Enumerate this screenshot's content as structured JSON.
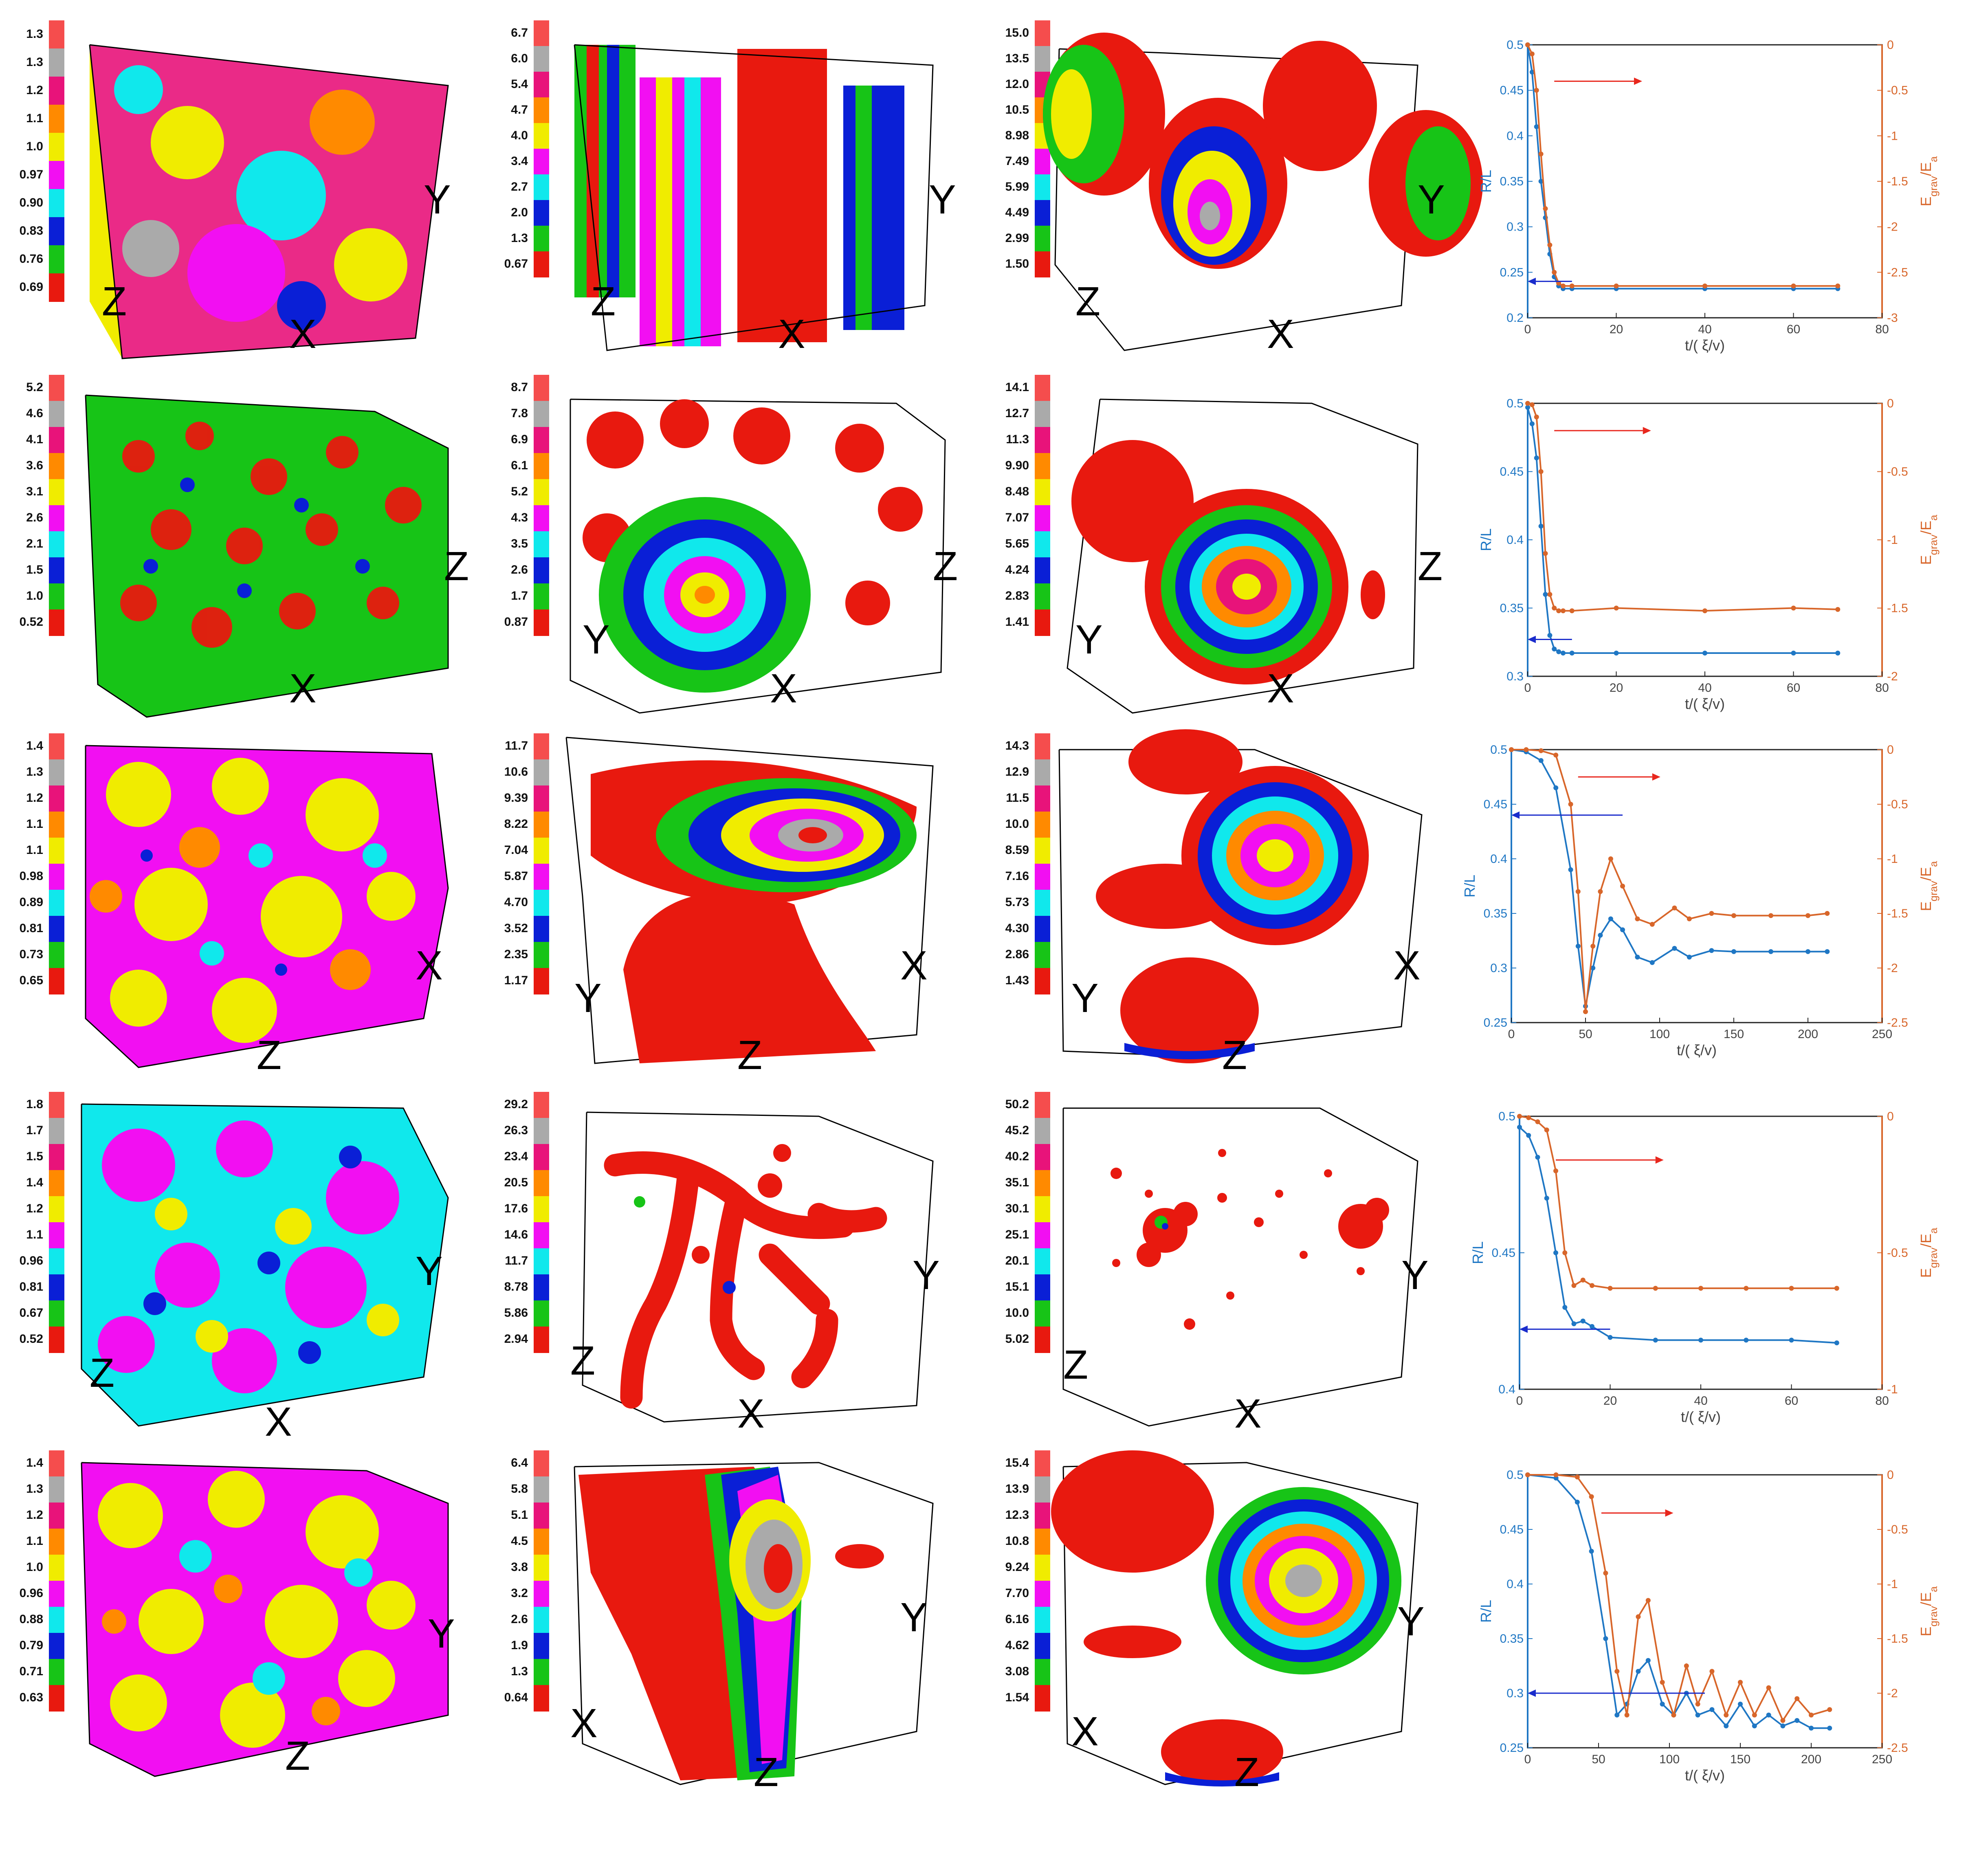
{
  "colors": {
    "palette": [
      "#e8190f",
      "#17c417",
      "#0a1fd6",
      "#10e8ec",
      "#f20ff2",
      "#f0ec00",
      "#ff8a00",
      "#e8137a",
      "#aaaaaa",
      "#f54d4d"
    ],
    "blue": "#1f77c4",
    "orange": "#d8662a",
    "arrow_red": "#e8271d",
    "arrow_blue": "#1a2ccc"
  },
  "rows": [
    {
      "panels": [
        {
          "colorbar": [
            "1.3",
            "1.3",
            "1.2",
            "1.1",
            "1.0",
            "0.97",
            "0.90",
            "0.83",
            "0.76",
            "0.69"
          ],
          "axes": [
            "Y",
            "Z",
            "X"
          ]
        },
        {
          "colorbar": [
            "6.7",
            "6.0",
            "5.4",
            "4.7",
            "4.0",
            "3.4",
            "2.7",
            "2.0",
            "1.3",
            "0.67"
          ],
          "axes": [
            "Y",
            "Z",
            "X"
          ]
        },
        {
          "colorbar": [
            "15.0",
            "13.5",
            "12.0",
            "10.5",
            "8.98",
            "7.49",
            "5.99",
            "4.49",
            "2.99",
            "1.50"
          ],
          "axes": [
            "Y",
            "Z",
            "X"
          ]
        }
      ]
    },
    {
      "panels": [
        {
          "colorbar": [
            "5.2",
            "4.6",
            "4.1",
            "3.6",
            "3.1",
            "2.6",
            "2.1",
            "1.5",
            "1.0",
            "0.52"
          ],
          "axes": [
            "Z",
            "X"
          ]
        },
        {
          "colorbar": [
            "8.7",
            "7.8",
            "6.9",
            "6.1",
            "5.2",
            "4.3",
            "3.5",
            "2.6",
            "1.7",
            "0.87"
          ],
          "axes": [
            "Z",
            "X",
            "Y"
          ]
        },
        {
          "colorbar": [
            "14.1",
            "12.7",
            "11.3",
            "9.90",
            "8.48",
            "7.07",
            "5.65",
            "4.24",
            "2.83",
            "1.41"
          ],
          "axes": [
            "Z",
            "X",
            "Y"
          ]
        }
      ]
    },
    {
      "panels": [
        {
          "colorbar": [
            "1.4",
            "1.3",
            "1.2",
            "1.1",
            "1.1",
            "0.98",
            "0.89",
            "0.81",
            "0.73",
            "0.65"
          ],
          "axes": [
            "X",
            "Z"
          ]
        },
        {
          "colorbar": [
            "11.7",
            "10.6",
            "9.39",
            "8.22",
            "7.04",
            "5.87",
            "4.70",
            "3.52",
            "2.35",
            "1.17"
          ],
          "axes": [
            "X",
            "Y",
            "Z"
          ]
        },
        {
          "colorbar": [
            "14.3",
            "12.9",
            "11.5",
            "10.0",
            "8.59",
            "7.16",
            "5.73",
            "4.30",
            "2.86",
            "1.43"
          ],
          "axes": [
            "X",
            "Y",
            "Z"
          ]
        }
      ]
    },
    {
      "panels": [
        {
          "colorbar": [
            "1.8",
            "1.7",
            "1.5",
            "1.4",
            "1.2",
            "1.1",
            "0.96",
            "0.81",
            "0.67",
            "0.52"
          ],
          "axes": [
            "Y",
            "Z",
            "X"
          ]
        },
        {
          "colorbar": [
            "29.2",
            "26.3",
            "23.4",
            "20.5",
            "17.6",
            "14.6",
            "11.7",
            "8.78",
            "5.86",
            "2.94"
          ],
          "axes": [
            "Y",
            "Z",
            "X"
          ]
        },
        {
          "colorbar": [
            "50.2",
            "45.2",
            "40.2",
            "35.1",
            "30.1",
            "25.1",
            "20.1",
            "15.1",
            "10.0",
            "5.02"
          ],
          "axes": [
            "Y",
            "Z",
            "X"
          ]
        }
      ]
    },
    {
      "panels": [
        {
          "colorbar": [
            "1.4",
            "1.3",
            "1.2",
            "1.1",
            "1.0",
            "0.96",
            "0.88",
            "0.79",
            "0.71",
            "0.63"
          ],
          "axes": [
            "Y",
            "Z"
          ]
        },
        {
          "colorbar": [
            "6.4",
            "5.8",
            "5.1",
            "4.5",
            "3.8",
            "3.2",
            "2.6",
            "1.9",
            "1.3",
            "0.64"
          ],
          "axes": [
            "Y",
            "X",
            "Z"
          ]
        },
        {
          "colorbar": [
            "15.4",
            "13.9",
            "12.3",
            "10.8",
            "9.24",
            "7.70",
            "6.16",
            "4.62",
            "3.08",
            "1.54"
          ],
          "axes": [
            "Y",
            "X",
            "Z"
          ]
        }
      ]
    }
  ],
  "chart_data": [
    {
      "type": "line",
      "xlabel": "t/( ξ/v)",
      "ylabel_left": "R/L",
      "ylabel_right": [
        "E",
        "grav",
        "/E",
        "a"
      ],
      "xlim": [
        0,
        80
      ],
      "xticks": [
        "0",
        "20",
        "40",
        "60",
        "80"
      ],
      "ylim_left": [
        0.2,
        0.5
      ],
      "yticks_left": [
        "0.2",
        "0.25",
        "0.3",
        "0.35",
        "0.4",
        "0.45",
        "0.5"
      ],
      "ylim_right": [
        -3,
        0
      ],
      "yticks_right": [
        "-3",
        "-2.5",
        "-2",
        "-1.5",
        "-1",
        "-0.5",
        "0"
      ],
      "series": [
        {
          "name": "R/L",
          "axis": "left",
          "x": [
            0,
            1,
            2,
            3,
            4,
            5,
            6,
            7,
            8,
            10,
            20,
            40,
            60,
            70
          ],
          "y": [
            0.5,
            0.47,
            0.41,
            0.35,
            0.31,
            0.27,
            0.245,
            0.235,
            0.232,
            0.232,
            0.232,
            0.232,
            0.232,
            0.232
          ]
        },
        {
          "name": "E_grav/E_a",
          "axis": "right",
          "x": [
            0,
            1,
            2,
            3,
            4,
            5,
            6,
            7,
            8,
            10,
            20,
            40,
            60,
            70
          ],
          "y": [
            0,
            -0.1,
            -0.5,
            -1.2,
            -1.8,
            -2.2,
            -2.5,
            -2.62,
            -2.65,
            -2.65,
            -2.65,
            -2.65,
            -2.65,
            -2.65
          ]
        }
      ],
      "arrows": [
        {
          "dir": "right",
          "x": 6,
          "y": 0.46,
          "len": 18
        },
        {
          "dir": "left",
          "x": 5,
          "y": 0.24,
          "len": 5
        }
      ]
    },
    {
      "type": "line",
      "xlabel": "t/( ξ/v)",
      "ylabel_left": "R/L",
      "ylabel_right": [
        "E",
        "grav",
        "/E",
        "a"
      ],
      "xlim": [
        0,
        80
      ],
      "xticks": [
        "0",
        "20",
        "40",
        "60",
        "80"
      ],
      "ylim_left": [
        0.3,
        0.5
      ],
      "yticks_left": [
        "0.3",
        "0.35",
        "0.4",
        "0.45",
        "0.5"
      ],
      "ylim_right": [
        -2,
        0
      ],
      "yticks_right": [
        "-2",
        "-1.5",
        "-1",
        "-0.5",
        "0"
      ],
      "series": [
        {
          "name": "R/L",
          "axis": "left",
          "x": [
            0,
            1,
            2,
            3,
            4,
            5,
            6,
            7,
            8,
            10,
            20,
            40,
            60,
            70
          ],
          "y": [
            0.497,
            0.485,
            0.46,
            0.41,
            0.36,
            0.33,
            0.32,
            0.318,
            0.317,
            0.317,
            0.317,
            0.317,
            0.317,
            0.317
          ]
        },
        {
          "name": "E_grav/E_a",
          "axis": "right",
          "x": [
            0,
            1,
            2,
            3,
            4,
            5,
            6,
            7,
            8,
            10,
            20,
            40,
            60,
            70
          ],
          "y": [
            0,
            -0.01,
            -0.1,
            -0.5,
            -1.1,
            -1.4,
            -1.5,
            -1.52,
            -1.52,
            -1.52,
            -1.5,
            -1.52,
            -1.5,
            -1.51
          ]
        }
      ],
      "arrows": [
        {
          "dir": "right",
          "x": 6,
          "y": 0.48,
          "len": 20
        },
        {
          "dir": "left",
          "x": 5,
          "y": 0.327,
          "len": 5
        }
      ]
    },
    {
      "type": "line",
      "xlabel": "t/( ξ/v)",
      "ylabel_left": "R/L",
      "ylabel_right": [
        "E",
        "grav",
        "/E",
        "a"
      ],
      "xlim": [
        0,
        250
      ],
      "xticks": [
        "0",
        "50",
        "100",
        "150",
        "200",
        "250"
      ],
      "ylim_left": [
        0.25,
        0.5
      ],
      "yticks_left": [
        "0.25",
        "0.3",
        "0.35",
        "0.4",
        "0.45",
        "0.5"
      ],
      "ylim_right": [
        -2.5,
        0
      ],
      "yticks_right": [
        "-2.5",
        "-2",
        "-1.5",
        "-1",
        "-0.5",
        "0"
      ],
      "series": [
        {
          "name": "R/L",
          "axis": "left",
          "x": [
            0,
            10,
            20,
            30,
            40,
            45,
            50,
            55,
            60,
            67,
            75,
            85,
            95,
            110,
            120,
            135,
            150,
            175,
            200,
            213
          ],
          "y": [
            0.5,
            0.498,
            0.49,
            0.465,
            0.39,
            0.32,
            0.265,
            0.3,
            0.33,
            0.345,
            0.335,
            0.31,
            0.305,
            0.318,
            0.31,
            0.316,
            0.315,
            0.315,
            0.315,
            0.315
          ]
        },
        {
          "name": "E_grav/E_a",
          "axis": "right",
          "x": [
            0,
            10,
            20,
            30,
            40,
            45,
            50,
            55,
            60,
            67,
            75,
            85,
            95,
            110,
            120,
            135,
            150,
            175,
            200,
            213
          ],
          "y": [
            0,
            0,
            -0.01,
            -0.05,
            -0.5,
            -1.3,
            -2.4,
            -1.8,
            -1.3,
            -1.0,
            -1.25,
            -1.55,
            -1.6,
            -1.45,
            -1.55,
            -1.5,
            -1.52,
            -1.52,
            -1.52,
            -1.5
          ]
        }
      ],
      "arrows": [
        {
          "dir": "right",
          "x": 45,
          "y": 0.475,
          "len": 50
        },
        {
          "dir": "left",
          "x": 40,
          "y": 0.44,
          "len": 35
        }
      ]
    },
    {
      "type": "line",
      "xlabel": "t/( ξ/v)",
      "ylabel_left": "R/L",
      "ylabel_right": [
        "E",
        "grav",
        "/E",
        "a"
      ],
      "xlim": [
        0,
        80
      ],
      "xticks": [
        "0",
        "20",
        "40",
        "60",
        "80"
      ],
      "ylim_left": [
        0.4,
        0.5
      ],
      "yticks_left": [
        "0.4",
        "0.45",
        "0.5"
      ],
      "ylim_right": [
        -1,
        0
      ],
      "yticks_right": [
        "-1",
        "-0.5",
        "0"
      ],
      "series": [
        {
          "name": "R/L",
          "axis": "left",
          "x": [
            0,
            2,
            4,
            6,
            8,
            10,
            12,
            14,
            16,
            20,
            30,
            40,
            50,
            60,
            70
          ],
          "y": [
            0.496,
            0.493,
            0.485,
            0.47,
            0.45,
            0.43,
            0.424,
            0.425,
            0.423,
            0.419,
            0.418,
            0.418,
            0.418,
            0.418,
            0.417
          ]
        },
        {
          "name": "E_grav/E_a",
          "axis": "right",
          "x": [
            0,
            2,
            4,
            6,
            8,
            10,
            12,
            14,
            16,
            20,
            30,
            40,
            50,
            60,
            70
          ],
          "y": [
            0,
            -0.005,
            -0.02,
            -0.05,
            -0.2,
            -0.5,
            -0.62,
            -0.6,
            -0.62,
            -0.63,
            -0.63,
            -0.63,
            -0.63,
            -0.63,
            -0.63
          ]
        }
      ],
      "arrows": [
        {
          "dir": "right",
          "x": 8,
          "y": 0.484,
          "len": 22
        },
        {
          "dir": "left",
          "x": 10,
          "y": 0.422,
          "len": 10
        }
      ]
    },
    {
      "type": "line",
      "xlabel": "t/( ξ/v)",
      "ylabel_left": "R/L",
      "ylabel_right": [
        "E",
        "grav",
        "/E",
        "a"
      ],
      "xlim": [
        0,
        250
      ],
      "xticks": [
        "0",
        "50",
        "100",
        "150",
        "200",
        "250"
      ],
      "ylim_left": [
        0.25,
        0.5
      ],
      "yticks_left": [
        "0.25",
        "0.3",
        "0.35",
        "0.4",
        "0.45",
        "0.5"
      ],
      "ylim_right": [
        -2.5,
        0
      ],
      "yticks_right": [
        "-2.5",
        "-2",
        "-1.5",
        "-1",
        "-0.5",
        "0"
      ],
      "series": [
        {
          "name": "R/L",
          "axis": "left",
          "x": [
            0,
            20,
            35,
            45,
            55,
            63,
            70,
            78,
            85,
            95,
            103,
            112,
            120,
            130,
            140,
            150,
            160,
            170,
            180,
            190,
            200,
            213
          ],
          "y": [
            0.5,
            0.497,
            0.475,
            0.43,
            0.35,
            0.28,
            0.29,
            0.32,
            0.33,
            0.29,
            0.28,
            0.3,
            0.28,
            0.285,
            0.27,
            0.29,
            0.27,
            0.28,
            0.27,
            0.275,
            0.268,
            0.268
          ]
        },
        {
          "name": "E_grav/E_a",
          "axis": "right",
          "x": [
            0,
            20,
            35,
            45,
            55,
            63,
            70,
            78,
            85,
            95,
            103,
            112,
            120,
            130,
            140,
            150,
            160,
            170,
            180,
            190,
            200,
            213
          ],
          "y": [
            0,
            0,
            -0.02,
            -0.2,
            -0.9,
            -1.8,
            -2.2,
            -1.3,
            -1.15,
            -1.9,
            -2.2,
            -1.75,
            -2.1,
            -1.8,
            -2.2,
            -1.9,
            -2.2,
            -1.95,
            -2.25,
            -2.05,
            -2.2,
            -2.15
          ]
        }
      ],
      "arrows": [
        {
          "dir": "right",
          "x": 52,
          "y": 0.465,
          "len": 45
        },
        {
          "dir": "left",
          "x": 65,
          "y": 0.3,
          "len": 60
        }
      ]
    }
  ]
}
